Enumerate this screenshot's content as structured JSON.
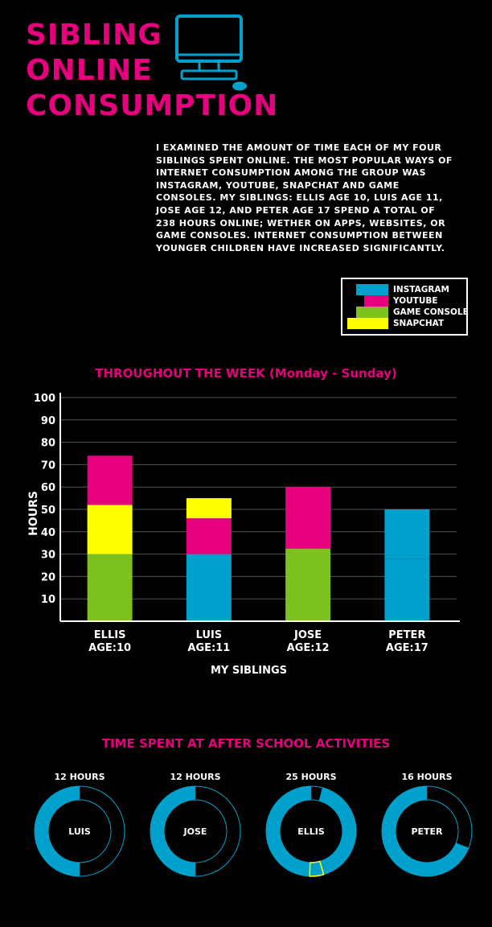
{
  "header": {
    "title_lines": [
      "SIBLING",
      "ONLINE",
      "CONSUMPTION"
    ],
    "icon": "computer-monitor-icon"
  },
  "intro": {
    "text": "I examined the amount of time each of my four siblings spent online. The most popular ways of internet consumption among the group was Instagram, YouTube, Snapchat and game consoles. My siblings: Ellis age 10, Luis age 11, Jose age 12, and Peter age 17 spend a total of 238 hours online; wether on apps, websites, or game consoles. Internet consumption between younger children have increased significantly."
  },
  "legend": {
    "items": [
      {
        "label": "INSTAGRAM",
        "color": "#00a0cc"
      },
      {
        "label": "YOUTUBE",
        "color": "#e6007e"
      },
      {
        "label": "GAME CONSOLE",
        "color": "#7dc11f"
      },
      {
        "label": "SNAPCHAT",
        "color": "#ffff00"
      }
    ]
  },
  "chart_data": [
    {
      "type": "bar",
      "stacked": true,
      "title": "THROUGHOUT THE WEEK (Monday - Sunday)",
      "xlabel": "MY SIBLINGS",
      "ylabel": "HOURS",
      "ylim": [
        0,
        100
      ],
      "yticks": [
        10,
        20,
        30,
        40,
        50,
        60,
        70,
        80,
        90,
        100
      ],
      "grid": true,
      "categories": [
        {
          "name": "ELLIS",
          "age": "AGE:10"
        },
        {
          "name": "LUIS",
          "age": "AGE:11"
        },
        {
          "name": "JOSE",
          "age": "AGE:12"
        },
        {
          "name": "PETER",
          "age": "AGE:17"
        }
      ],
      "series": [
        {
          "name": "INSTAGRAM",
          "color": "#00a0cc",
          "values": [
            0,
            30,
            0,
            28
          ]
        },
        {
          "name": "GAME CONSOLE",
          "color": "#7dc11f",
          "values": [
            30,
            0,
            32.5,
            0
          ]
        },
        {
          "name": "SNAPCHAT",
          "color": "#ffff00",
          "values": [
            22,
            0,
            0,
            0
          ]
        },
        {
          "name": "YOUTUBE",
          "color": "#e6007e",
          "values": [
            22,
            16,
            27.5,
            0
          ]
        },
        {
          "name": "SNAPCHAT",
          "color": "#ffff00",
          "values": [
            0,
            9,
            0,
            0
          ]
        },
        {
          "name": "INSTAGRAM",
          "color": "#00a0cc",
          "values": [
            0,
            0,
            0,
            22
          ]
        }
      ]
    },
    {
      "type": "pie",
      "title": "TIME SPENT AT AFTER SCHOOL ACTIVITIES",
      "items": [
        {
          "name": "LUIS",
          "label": "12 HOURS",
          "hours": 12,
          "fraction": 0.5
        },
        {
          "name": "JOSE",
          "label": "12 HOURS",
          "hours": 12,
          "fraction": 0.5
        },
        {
          "name": "ELLIS",
          "label": "25 HOURS",
          "hours": 25,
          "fraction": 0.96
        },
        {
          "name": "PETER",
          "label": "16 HOURS",
          "hours": 16,
          "fraction": 0.69
        }
      ],
      "colors": {
        "fill": "#00a0cc",
        "highlight": "#ffff00"
      }
    }
  ]
}
